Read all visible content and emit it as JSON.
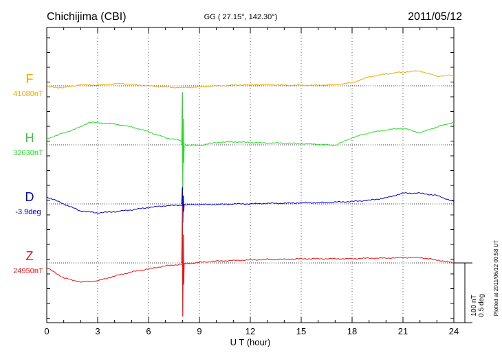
{
  "header": {
    "station": "Chichijima (CBI)",
    "coords": "GG ( 27.15°, 142.30°)",
    "date": "2011/05/12"
  },
  "footer": {
    "plotted_at": "Plotted at 2011/06/12 00:58 UT"
  },
  "scale": {
    "label_nt": "100 nT",
    "label_deg": "0.5 deg"
  },
  "chart_data": {
    "type": "line",
    "xlabel": "U T (hour)",
    "xlim": [
      0,
      24
    ],
    "xticks": [
      0,
      3,
      6,
      9,
      12,
      15,
      18,
      21,
      24
    ],
    "xtick_labels": [
      "0",
      "3",
      "6",
      "9",
      "12",
      "15",
      "18",
      "21",
      "24"
    ],
    "grid": true,
    "yunit": "nT",
    "yrange_each_panel": [
      -100,
      100
    ],
    "series": [
      {
        "name": "F",
        "baseline_label": "41080nT",
        "color": "#f0a800",
        "x": [
          0,
          1,
          2,
          3,
          4,
          4.5,
          5,
          6,
          7,
          8,
          9,
          10,
          11,
          12,
          13,
          14,
          15,
          16,
          17,
          18,
          19,
          20,
          21,
          22,
          23,
          24
        ],
        "y": [
          -2,
          -3,
          2,
          1,
          3,
          4,
          2,
          0,
          -2,
          -3,
          -2,
          0,
          1,
          2,
          2,
          1,
          1,
          1,
          2,
          5,
          15,
          20,
          23,
          25,
          16,
          18
        ]
      },
      {
        "name": "H",
        "baseline_label": "32630nT",
        "color": "#22dd22",
        "x": [
          0,
          1,
          2,
          2.5,
          3,
          4,
          5,
          6,
          7,
          7.8,
          8.1,
          8.2,
          9,
          10,
          11,
          12,
          13,
          14,
          15,
          16,
          17,
          18,
          19,
          20,
          21,
          22,
          23,
          24
        ],
        "y": [
          10,
          20,
          30,
          38,
          37,
          35,
          30,
          22,
          12,
          8,
          2,
          0,
          -1,
          4,
          5,
          4,
          3,
          3,
          2,
          1,
          -1,
          12,
          20,
          25,
          28,
          20,
          30,
          38
        ],
        "spike": {
          "x": 8.0,
          "max": 88,
          "min": -75
        }
      },
      {
        "name": "D",
        "baseline_label": "-3.9deg",
        "color": "#0000cc",
        "x": [
          0,
          1,
          2,
          3,
          4,
          5,
          6,
          7,
          8,
          9,
          10,
          11,
          12,
          13,
          14,
          15,
          16,
          17,
          18,
          19,
          20,
          21,
          22,
          23,
          24
        ],
        "y": [
          12,
          0,
          -12,
          -15,
          -13,
          -10,
          -6,
          -3,
          -2,
          -1,
          -1,
          0,
          0,
          1,
          1,
          2,
          2,
          3,
          4,
          6,
          10,
          18,
          18,
          14,
          4
        ],
        "spike": {
          "x": 8.0,
          "max": 28,
          "min": -32
        }
      },
      {
        "name": "Z",
        "baseline_label": "24950nT",
        "color": "#ee1111",
        "x": [
          0,
          1,
          2,
          3,
          4,
          5,
          6,
          7,
          8,
          9,
          10,
          11,
          12,
          13,
          14,
          15,
          16,
          17,
          18,
          19,
          20,
          21,
          22,
          23,
          24
        ],
        "y": [
          -8,
          -25,
          -32,
          -30,
          -22,
          -15,
          -10,
          -5,
          -2,
          1,
          3,
          4,
          5,
          6,
          6,
          7,
          7,
          7,
          7,
          8,
          8,
          9,
          9,
          5,
          0
        ],
        "spike": {
          "x": 8.0,
          "max": 95,
          "min": -90
        }
      }
    ]
  }
}
